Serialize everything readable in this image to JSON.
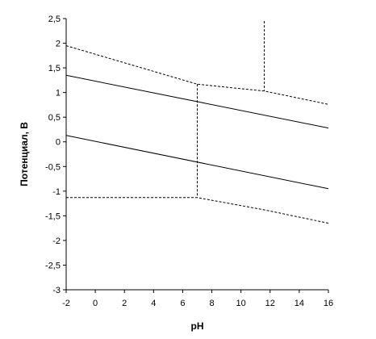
{
  "chart_data": {
    "type": "line",
    "xlabel": "pH",
    "ylabel": "Потенциал, В",
    "xlim": [
      -2,
      16
    ],
    "ylim": [
      -3,
      2.5
    ],
    "x_ticks": [
      -2,
      0,
      2,
      4,
      6,
      8,
      10,
      12,
      14,
      16
    ],
    "x_tick_labels": [
      "-2",
      "0",
      "2",
      "4",
      "6",
      "8",
      "10",
      "12",
      "14",
      "16"
    ],
    "y_ticks": [
      2.5,
      2,
      1.5,
      1,
      0.5,
      0,
      -0.5,
      -1,
      -1.5,
      -2,
      -2.5,
      -3
    ],
    "y_tick_labels": [
      "2,5",
      "2",
      "1,5",
      "1",
      "0,5",
      "0",
      "-0,5",
      "-1",
      "-1,5",
      "-2",
      "-2,5",
      "-3"
    ],
    "grid": false,
    "legend": "none",
    "series": [
      {
        "style": "solid",
        "points": [
          [
            -2,
            1.35
          ],
          [
            16,
            0.28
          ]
        ]
      },
      {
        "style": "solid",
        "points": [
          [
            -2,
            0.13
          ],
          [
            16,
            -0.95
          ]
        ]
      },
      {
        "style": "dashed",
        "points": [
          [
            -2,
            1.95
          ],
          [
            7.0,
            1.17
          ],
          [
            11.6,
            1.03
          ],
          [
            16,
            0.76
          ]
        ]
      },
      {
        "style": "dashed",
        "points": [
          [
            -2,
            -1.13
          ],
          [
            7.0,
            -1.13
          ],
          [
            11.6,
            -1.38
          ],
          [
            16,
            -1.65
          ]
        ]
      },
      {
        "style": "dashed",
        "points": [
          [
            7.0,
            1.17
          ],
          [
            7.0,
            -1.13
          ]
        ]
      },
      {
        "style": "dashed",
        "points": [
          [
            11.6,
            2.45
          ],
          [
            11.6,
            1.03
          ]
        ]
      }
    ]
  }
}
